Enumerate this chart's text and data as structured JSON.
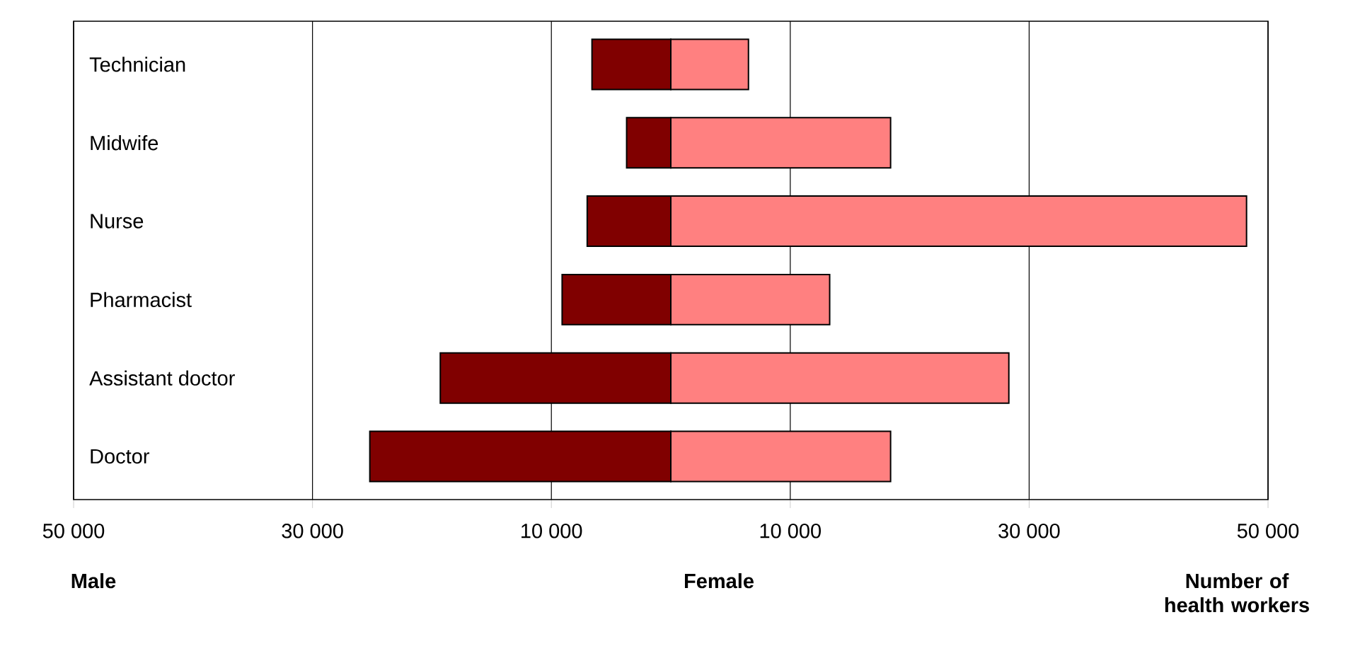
{
  "chart_data": {
    "type": "bar",
    "orientation": "horizontal",
    "stacked": true,
    "categories": [
      "Technician",
      "Midwife",
      "Nurse",
      "Pharmacist",
      "Assistant doctor",
      "Doctor"
    ],
    "series": [
      {
        "color": "#800000",
        "values": [
          -6600,
          -3700,
          -7000,
          -9100,
          -19300,
          -25200
        ]
      },
      {
        "color": "#ff8080",
        "values": [
          6500,
          18400,
          48200,
          13300,
          28300,
          18400
        ]
      }
    ],
    "xlim": [
      -50000,
      50000
    ],
    "xticks": [
      {
        "value": -50000,
        "label": "50 000"
      },
      {
        "value": -30000,
        "label": "30 000"
      },
      {
        "value": -10000,
        "label": "10 000"
      },
      {
        "value": 10000,
        "label": "10 000"
      },
      {
        "value": 30000,
        "label": "30 000"
      },
      {
        "value": 50000,
        "label": "50 000"
      }
    ],
    "grid": "x",
    "annotations": [
      "Male",
      "Female",
      "Number of health workers"
    ]
  }
}
